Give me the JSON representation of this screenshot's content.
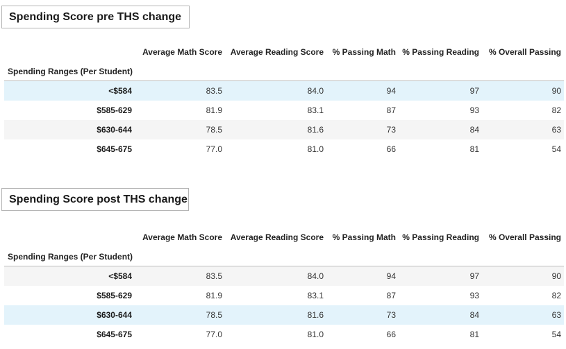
{
  "pre": {
    "title": "Spending Score pre THS change",
    "index_name": "Spending Ranges (Per Student)",
    "columns": [
      "Average Math Score",
      "Average Reading Score",
      "% Passing Math",
      "% Passing Reading",
      "% Overall Passing"
    ],
    "rows": [
      {
        "label": "<$584",
        "cells": [
          "83.5",
          "84.0",
          "94",
          "97",
          "90"
        ]
      },
      {
        "label": "$585-629",
        "cells": [
          "81.9",
          "83.1",
          "87",
          "93",
          "82"
        ]
      },
      {
        "label": "$630-644",
        "cells": [
          "78.5",
          "81.6",
          "73",
          "84",
          "63"
        ]
      },
      {
        "label": "$645-675",
        "cells": [
          "77.0",
          "81.0",
          "66",
          "81",
          "54"
        ]
      }
    ],
    "highlighted_row": 0
  },
  "post": {
    "title": "Spending Score post THS change",
    "index_name": "Spending Ranges (Per Student)",
    "columns": [
      "Average Math Score",
      "Average Reading Score",
      "% Passing Math",
      "% Passing Reading",
      "% Overall Passing"
    ],
    "rows": [
      {
        "label": "<$584",
        "cells": [
          "83.5",
          "84.0",
          "94",
          "97",
          "90"
        ]
      },
      {
        "label": "$585-629",
        "cells": [
          "81.9",
          "83.1",
          "87",
          "93",
          "82"
        ]
      },
      {
        "label": "$630-644",
        "cells": [
          "78.5",
          "81.6",
          "73",
          "84",
          "63"
        ]
      },
      {
        "label": "$645-675",
        "cells": [
          "77.0",
          "81.0",
          "66",
          "81",
          "54"
        ]
      }
    ],
    "highlighted_row": 2
  },
  "colors": {
    "row_stripe": "#f5f5f5",
    "row_hover": "#e3f3fb",
    "header_rule": "#bdbdbd"
  }
}
